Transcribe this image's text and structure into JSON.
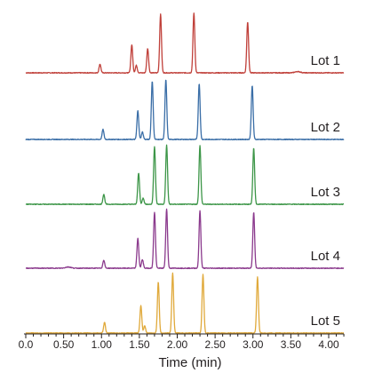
{
  "chart_data": {
    "type": "line",
    "subtype": "stacked-chromatogram",
    "title": "",
    "xlabel": "Time (min)",
    "ylabel": "",
    "xlim": [
      0,
      4.2
    ],
    "x_ticks": [
      0,
      0.5,
      1.0,
      1.5,
      2.0,
      2.5,
      3.0,
      3.5,
      4.0
    ],
    "x_tick_labels": [
      "0.0",
      "0.50",
      "1.00",
      "1.50",
      "2.00",
      "2.50",
      "3.00",
      "3.50",
      "4.00"
    ],
    "grid": false,
    "legend": "none",
    "y_units": "relative intensity (0-1)",
    "series": [
      {
        "name": "Lot 1",
        "color": "#c0403a",
        "peaks": [
          {
            "rt": 0.98,
            "height": 0.14
          },
          {
            "rt": 1.4,
            "height": 0.45
          },
          {
            "rt": 1.46,
            "height": 0.12
          },
          {
            "rt": 1.61,
            "height": 0.39
          },
          {
            "rt": 1.78,
            "height": 0.94
          },
          {
            "rt": 2.22,
            "height": 0.96
          },
          {
            "rt": 2.93,
            "height": 0.82
          },
          {
            "rt": 3.59,
            "height": 0.02
          }
        ]
      },
      {
        "name": "Lot 2",
        "color": "#3a6ea7",
        "peaks": [
          {
            "rt": 1.02,
            "height": 0.16
          },
          {
            "rt": 1.48,
            "height": 0.46
          },
          {
            "rt": 1.54,
            "height": 0.12
          },
          {
            "rt": 1.67,
            "height": 0.94
          },
          {
            "rt": 1.85,
            "height": 0.96
          },
          {
            "rt": 2.29,
            "height": 0.9
          },
          {
            "rt": 2.99,
            "height": 0.87
          }
        ]
      },
      {
        "name": "Lot 3",
        "color": "#3d9648",
        "peaks": [
          {
            "rt": 1.03,
            "height": 0.16
          },
          {
            "rt": 1.49,
            "height": 0.5
          },
          {
            "rt": 1.55,
            "height": 0.1
          },
          {
            "rt": 1.7,
            "height": 0.93
          },
          {
            "rt": 1.86,
            "height": 0.95
          },
          {
            "rt": 2.3,
            "height": 0.94
          },
          {
            "rt": 3.01,
            "height": 0.9
          }
        ]
      },
      {
        "name": "Lot 4",
        "color": "#8b3a8d",
        "peaks": [
          {
            "rt": 0.56,
            "height": 0.02
          },
          {
            "rt": 1.03,
            "height": 0.13
          },
          {
            "rt": 1.48,
            "height": 0.48
          },
          {
            "rt": 1.54,
            "height": 0.14
          },
          {
            "rt": 1.7,
            "height": 0.9
          },
          {
            "rt": 1.86,
            "height": 0.95
          },
          {
            "rt": 2.3,
            "height": 0.92
          },
          {
            "rt": 3.01,
            "height": 0.9
          }
        ]
      },
      {
        "name": "Lot 5",
        "color": "#e0a93a",
        "peaks": [
          {
            "rt": 1.04,
            "height": 0.17
          },
          {
            "rt": 1.52,
            "height": 0.44
          },
          {
            "rt": 1.57,
            "height": 0.12
          },
          {
            "rt": 1.75,
            "height": 0.82
          },
          {
            "rt": 1.94,
            "height": 0.96
          },
          {
            "rt": 2.34,
            "height": 0.94
          },
          {
            "rt": 3.06,
            "height": 0.9
          }
        ]
      }
    ]
  }
}
